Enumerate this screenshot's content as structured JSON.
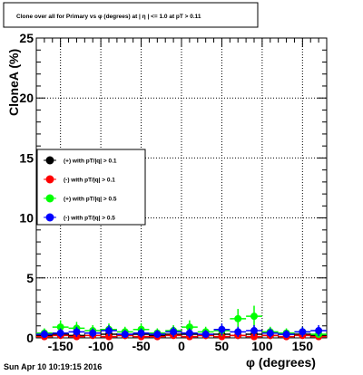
{
  "chart_data": {
    "type": "scatter",
    "title": "Clone  over all for Primary vs φ (degrees) at | η | <= 1.0 at pT > 0.11",
    "xlabel": "φ (degrees)",
    "ylabel": "CloneA (%)",
    "xlim": [
      -180,
      180
    ],
    "ylim": [
      0,
      25
    ],
    "xticks": [
      -150,
      -100,
      -50,
      0,
      50,
      100,
      150
    ],
    "yticks": [
      0,
      5,
      10,
      15,
      20,
      25
    ],
    "grid": true,
    "legend_position": "left-middle",
    "x": [
      -170,
      -150,
      -130,
      -110,
      -90,
      -70,
      -50,
      -30,
      -10,
      10,
      30,
      50,
      70,
      90,
      110,
      130,
      150,
      170
    ],
    "series": [
      {
        "name": "(+) with pT/|q| > 0.1",
        "color": "#000000",
        "values": [
          0.2,
          0.3,
          0.2,
          0.4,
          0.3,
          0.2,
          0.3,
          0.2,
          0.3,
          0.3,
          0.2,
          0.3,
          0.2,
          0.3,
          0.2,
          0.3,
          0.3,
          0.2
        ]
      },
      {
        "name": "(-) with pT/|q| > 0.1",
        "color": "#ff0000",
        "values": [
          0.1,
          0.2,
          0.1,
          0.2,
          0.1,
          0.2,
          0.1,
          0.1,
          0.2,
          0.1,
          0.2,
          0.1,
          0.2,
          0.1,
          0.2,
          0.1,
          0.2,
          0.1
        ]
      },
      {
        "name": "(+) with pT/|q| > 0.5",
        "color": "#00ff00",
        "values": [
          0.4,
          0.9,
          0.8,
          0.6,
          0.7,
          0.5,
          0.7,
          0.4,
          0.6,
          0.9,
          0.5,
          0.6,
          1.6,
          1.8,
          0.5,
          0.4,
          0.5,
          0.3
        ]
      },
      {
        "name": "(-) with pT/|q| > 0.5",
        "color": "#0000ff",
        "values": [
          0.3,
          0.4,
          0.5,
          0.4,
          0.6,
          0.3,
          0.4,
          0.3,
          0.5,
          0.4,
          0.3,
          0.7,
          0.5,
          0.6,
          0.4,
          0.3,
          0.5,
          0.6
        ]
      }
    ]
  },
  "footer": {
    "timestamp": "Sun Apr 10 10:19:15 2016"
  }
}
